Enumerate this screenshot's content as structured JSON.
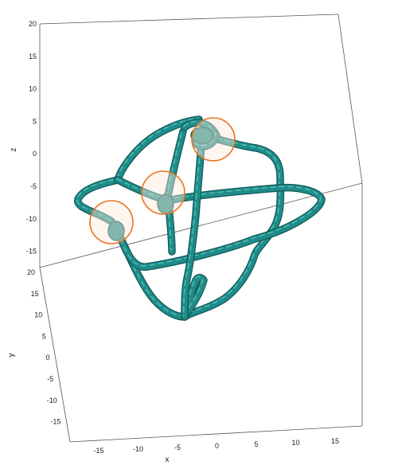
{
  "chart_data": {
    "type": "3d-surface-plot",
    "description_visible": "3D tube surface (knot-like closed curve) with three translucent orange-outlined discs marking junction points",
    "axes": {
      "x": {
        "label": "x",
        "ticks": [
          "-15",
          "-10",
          "-5",
          "0",
          "5",
          "10",
          "15"
        ],
        "range": [
          -18,
          18
        ]
      },
      "y": {
        "label": "y",
        "ticks": [
          "20",
          "15",
          "10",
          "5",
          "0",
          "-5",
          "-10",
          "-15"
        ],
        "range": [
          -17,
          20
        ]
      },
      "z": {
        "label": "z",
        "ticks": [
          "20",
          "15",
          "10",
          "5",
          "0",
          "-5",
          "-10",
          "-15"
        ],
        "range": [
          -17,
          20
        ]
      }
    },
    "grid": false,
    "colors": {
      "tube": "#1f8c89",
      "tube_highlight": "#5fc4bd",
      "tube_shadow": "#0f5a58",
      "marker_fill": "#fde9d9",
      "marker_edge": "#e8731f",
      "box_edge": "#555555"
    }
  }
}
